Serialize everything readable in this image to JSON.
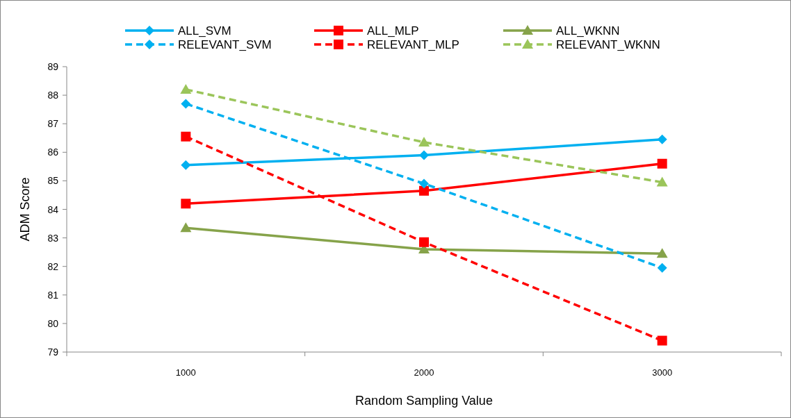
{
  "chart_data": {
    "type": "line",
    "xlabel": "Random Sampling Value",
    "ylabel": "ADM Score",
    "categories": [
      "1000",
      "2000",
      "3000"
    ],
    "ylim": [
      79,
      89
    ],
    "yticks": [
      79,
      80,
      81,
      82,
      83,
      84,
      85,
      86,
      87,
      88,
      89
    ],
    "grid": false,
    "legend": "top",
    "series": [
      {
        "name": "ALL_SVM",
        "color": "#00b0f0",
        "marker": "diamond",
        "line_style": "solid",
        "values": [
          85.55,
          85.9,
          86.45
        ]
      },
      {
        "name": "ALL_MLP",
        "color": "#ff0000",
        "marker": "square",
        "line_style": "solid",
        "values": [
          84.2,
          84.65,
          85.6
        ]
      },
      {
        "name": "ALL_WKNN",
        "color": "#86a34a",
        "marker": "triangle",
        "line_style": "solid",
        "values": [
          83.35,
          82.6,
          82.45
        ]
      },
      {
        "name": "RELEVANT_SVM",
        "color": "#00b0f0",
        "marker": "diamond",
        "line_style": "dashed",
        "values": [
          87.7,
          84.9,
          81.95
        ]
      },
      {
        "name": "RELEVANT_MLP",
        "color": "#ff0000",
        "marker": "square",
        "line_style": "dashed",
        "values": [
          86.55,
          82.85,
          79.4
        ]
      },
      {
        "name": "RELEVANT_WKNN",
        "color": "#9bc55a",
        "marker": "triangle",
        "line_style": "dashed",
        "values": [
          88.2,
          86.35,
          84.95
        ]
      }
    ]
  }
}
